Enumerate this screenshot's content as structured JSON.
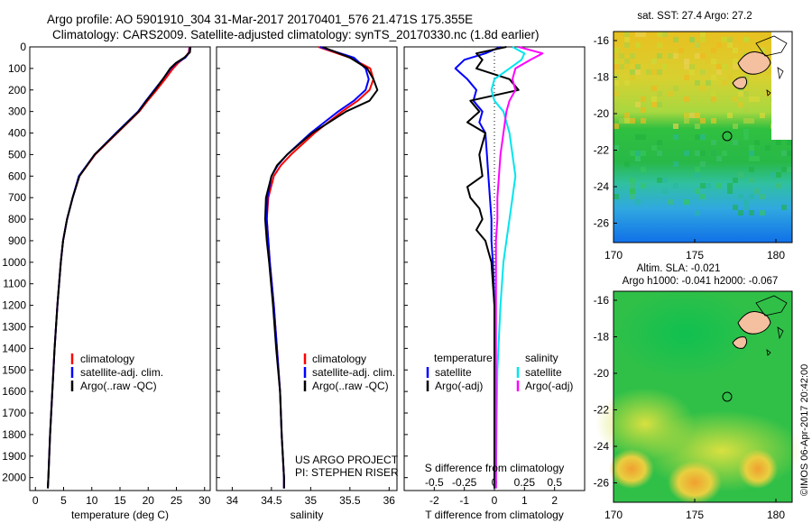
{
  "header": {
    "line1": "Argo profile: AO 5901910_304 31-Mar-2017 20170401_576 21.471S 175.355E",
    "line2": "Climatology: CARS2009. Satellite-adjusted climatology: synTS_20170330.nc (1.8d earlier)"
  },
  "colors": {
    "climatology": "#ff0000",
    "satellite": "#0000ff",
    "argo": "#000000",
    "sat_salinity": "#00e5ee",
    "argo_salinity": "#ff00ff"
  },
  "depth_ticks": [
    "0",
    "100",
    "200",
    "300",
    "400",
    "500",
    "600",
    "700",
    "800",
    "900",
    "1000",
    "1100",
    "1200",
    "1300",
    "1400",
    "1500",
    "1600",
    "1700",
    "1800",
    "1900",
    "2000"
  ],
  "chart_data": [
    {
      "type": "line",
      "panel": "temperature",
      "xlabel": "temperature (deg C)",
      "xlim": [
        -1,
        31
      ],
      "ylim": [
        2060,
        0
      ],
      "xticks": [
        "0",
        "5",
        "10",
        "15",
        "20",
        "25",
        "30"
      ],
      "legend": [
        "climatology",
        "satellite-adj. clim.",
        "Argo(..raw -QC)"
      ],
      "series": [
        {
          "name": "climatology",
          "color": "#ff0000",
          "depth": [
            0,
            25,
            50,
            75,
            100,
            150,
            200,
            250,
            300,
            400,
            500,
            600,
            700,
            800,
            900,
            1000,
            1200,
            1400,
            1600,
            1800,
            2000,
            2050
          ],
          "values": [
            27.3,
            27.2,
            26.5,
            25.3,
            24.4,
            23.0,
            21.5,
            19.9,
            18.4,
            14.5,
            10.6,
            7.8,
            6.6,
            5.6,
            4.9,
            4.5,
            3.9,
            3.4,
            3.0,
            2.6,
            2.3,
            2.2
          ]
        },
        {
          "name": "satellite-adj. clim.",
          "color": "#0000ff",
          "depth": [
            0,
            25,
            50,
            75,
            100,
            150,
            200,
            250,
            300,
            400,
            500,
            600,
            700,
            800,
            900,
            1000,
            1200,
            1400,
            1600,
            1800,
            2000,
            2050
          ],
          "values": [
            27.4,
            27.3,
            26.6,
            25.0,
            24.0,
            22.6,
            21.1,
            19.6,
            18.2,
            14.3,
            10.5,
            7.7,
            6.6,
            5.6,
            4.9,
            4.5,
            3.9,
            3.4,
            3.0,
            2.6,
            2.3,
            2.2
          ]
        },
        {
          "name": "Argo(..raw -QC)",
          "color": "#000000",
          "depth": [
            0,
            25,
            50,
            75,
            100,
            150,
            200,
            250,
            300,
            400,
            500,
            600,
            700,
            800,
            900,
            1000,
            1200,
            1400,
            1600,
            1800,
            2000,
            2050
          ],
          "values": [
            27.5,
            27.4,
            26.4,
            24.9,
            23.9,
            22.6,
            21.2,
            19.7,
            18.3,
            14.4,
            10.5,
            7.8,
            6.6,
            5.6,
            4.9,
            4.5,
            3.9,
            3.4,
            3.0,
            2.6,
            2.3,
            2.2
          ]
        }
      ]
    },
    {
      "type": "line",
      "panel": "salinity",
      "xlabel": "salinity",
      "xlim": [
        33.8,
        36.1
      ],
      "ylim": [
        2060,
        0
      ],
      "xticks": [
        "34",
        "34.5",
        "35",
        "35.5",
        "36"
      ],
      "legend": [
        "climatology",
        "satellite-adj. clim.",
        "Argo(..raw -QC)"
      ],
      "annotation": [
        "US ARGO PROJECT",
        "PI: STEPHEN RISER"
      ],
      "series": [
        {
          "name": "climatology",
          "color": "#ff0000",
          "depth": [
            0,
            50,
            100,
            150,
            200,
            250,
            300,
            400,
            500,
            550,
            600,
            700,
            800,
            900,
            1000,
            1200,
            1400,
            1600,
            1800,
            2000,
            2050
          ],
          "values": [
            35.1,
            35.5,
            35.76,
            35.8,
            35.75,
            35.6,
            35.4,
            35.05,
            34.75,
            34.62,
            34.53,
            34.46,
            34.44,
            34.46,
            34.48,
            34.53,
            34.57,
            34.61,
            34.63,
            34.66,
            34.66
          ]
        },
        {
          "name": "satellite-adj. clim.",
          "color": "#0000ff",
          "depth": [
            0,
            50,
            100,
            150,
            200,
            250,
            300,
            400,
            500,
            550,
            600,
            700,
            800,
            900,
            1000,
            1200,
            1400,
            1600,
            1800,
            2000,
            2050
          ],
          "values": [
            35.12,
            35.55,
            35.7,
            35.74,
            35.7,
            35.55,
            35.35,
            35.0,
            34.7,
            34.58,
            34.5,
            34.45,
            34.44,
            34.46,
            34.48,
            34.53,
            34.57,
            34.61,
            34.63,
            34.66,
            34.66
          ]
        },
        {
          "name": "Argo(..raw -QC)",
          "color": "#000000",
          "depth": [
            0,
            50,
            100,
            150,
            200,
            250,
            300,
            400,
            500,
            550,
            600,
            700,
            800,
            900,
            1000,
            1200,
            1400,
            1600,
            1800,
            2000,
            2050
          ],
          "values": [
            35.15,
            35.5,
            35.72,
            35.8,
            35.85,
            35.75,
            35.45,
            35.02,
            34.7,
            34.57,
            34.5,
            34.43,
            34.42,
            34.44,
            34.47,
            34.52,
            34.56,
            34.61,
            34.63,
            34.66,
            34.66
          ]
        }
      ]
    },
    {
      "type": "line",
      "panel": "differences",
      "xlabel": "T difference from climatology",
      "xlabel_top": "S difference from climatology",
      "xlim": [
        -3,
        3
      ],
      "ylim": [
        2060,
        0
      ],
      "xticks": [
        "-2",
        "-1",
        "0",
        "1",
        "2"
      ],
      "s_xticks": [
        "-0.5",
        "-0.25",
        "0",
        "0.25",
        "0.5"
      ],
      "legend_temperature_title": "temperature",
      "legend_salinity_title": "salinity",
      "legend": [
        "satellite",
        "Argo(-adj)",
        "satellite",
        "Argo(-adj)"
      ],
      "series": [
        {
          "name": "satellite",
          "group": "temperature",
          "color": "#0000ff",
          "depth": [
            0,
            30,
            60,
            100,
            150,
            200,
            250,
            300,
            350,
            400,
            500,
            600,
            700,
            800,
            900,
            1000,
            1200,
            1500,
            2000,
            2050
          ],
          "values": [
            0.2,
            -0.3,
            -1.0,
            -1.3,
            -0.9,
            -0.6,
            -0.7,
            -0.4,
            -0.5,
            -0.3,
            -0.25,
            -0.2,
            -0.15,
            -0.1,
            -0.1,
            -0.05,
            0.0,
            0.0,
            0.0,
            0.0
          ]
        },
        {
          "name": "Argo(-adj)",
          "group": "temperature",
          "color": "#000000",
          "depth": [
            0,
            30,
            60,
            100,
            150,
            200,
            250,
            300,
            350,
            400,
            500,
            600,
            650,
            700,
            750,
            800,
            850,
            900,
            950,
            1000,
            1100,
            1200,
            1500,
            2000,
            2050
          ],
          "values": [
            0.4,
            -0.6,
            -0.4,
            -0.6,
            0.5,
            0.8,
            -0.8,
            -0.5,
            -0.9,
            -0.3,
            -0.5,
            -0.4,
            -0.9,
            -0.8,
            -0.5,
            -0.4,
            -0.6,
            -0.3,
            -0.2,
            -0.1,
            -0.05,
            0.0,
            0.0,
            0.0,
            0.0
          ]
        },
        {
          "name": "satellite",
          "group": "salinity",
          "color": "#00e5ee",
          "depth": [
            0,
            30,
            60,
            100,
            150,
            200,
            250,
            300,
            400,
            500,
            600,
            700,
            800,
            900,
            1000,
            1200,
            1500,
            2000,
            2050
          ],
          "values": [
            0.6,
            1.0,
            0.9,
            0.5,
            0.0,
            -0.1,
            0.0,
            0.3,
            0.5,
            0.6,
            0.7,
            0.6,
            0.5,
            0.4,
            0.3,
            0.2,
            0.1,
            0.05,
            0.05
          ]
        },
        {
          "name": "Argo(-adj)",
          "group": "salinity",
          "color": "#ff00ff",
          "depth": [
            0,
            30,
            60,
            100,
            150,
            200,
            250,
            300,
            400,
            500,
            600,
            700,
            800,
            900,
            1000,
            1200,
            1500,
            2000,
            2050
          ],
          "values": [
            0.8,
            1.6,
            1.2,
            0.7,
            0.6,
            0.7,
            0.5,
            0.4,
            0.3,
            0.2,
            0.15,
            0.1,
            0.1,
            0.05,
            0.05,
            0.05,
            0.05,
            0.05,
            0.05
          ]
        }
      ]
    }
  ],
  "maps": {
    "sst": {
      "title": "sat. SST: 27.4 Argo: 27.2",
      "xticks": [
        "170",
        "175",
        "180"
      ],
      "yticks": [
        "-16",
        "-18",
        "-20",
        "-22",
        "-24",
        "-26"
      ]
    },
    "sla": {
      "title_line1": "Altim. SLA: -0.021",
      "title_line2": "Argo h1000: -0.041 h2000: -0.067",
      "xticks": [
        "170",
        "175",
        "180"
      ],
      "yticks": [
        "-16",
        "-18",
        "-20",
        "-22",
        "-24",
        "-26"
      ]
    }
  },
  "credit": "©IMOS 06-Apr-2017 20:42:00"
}
